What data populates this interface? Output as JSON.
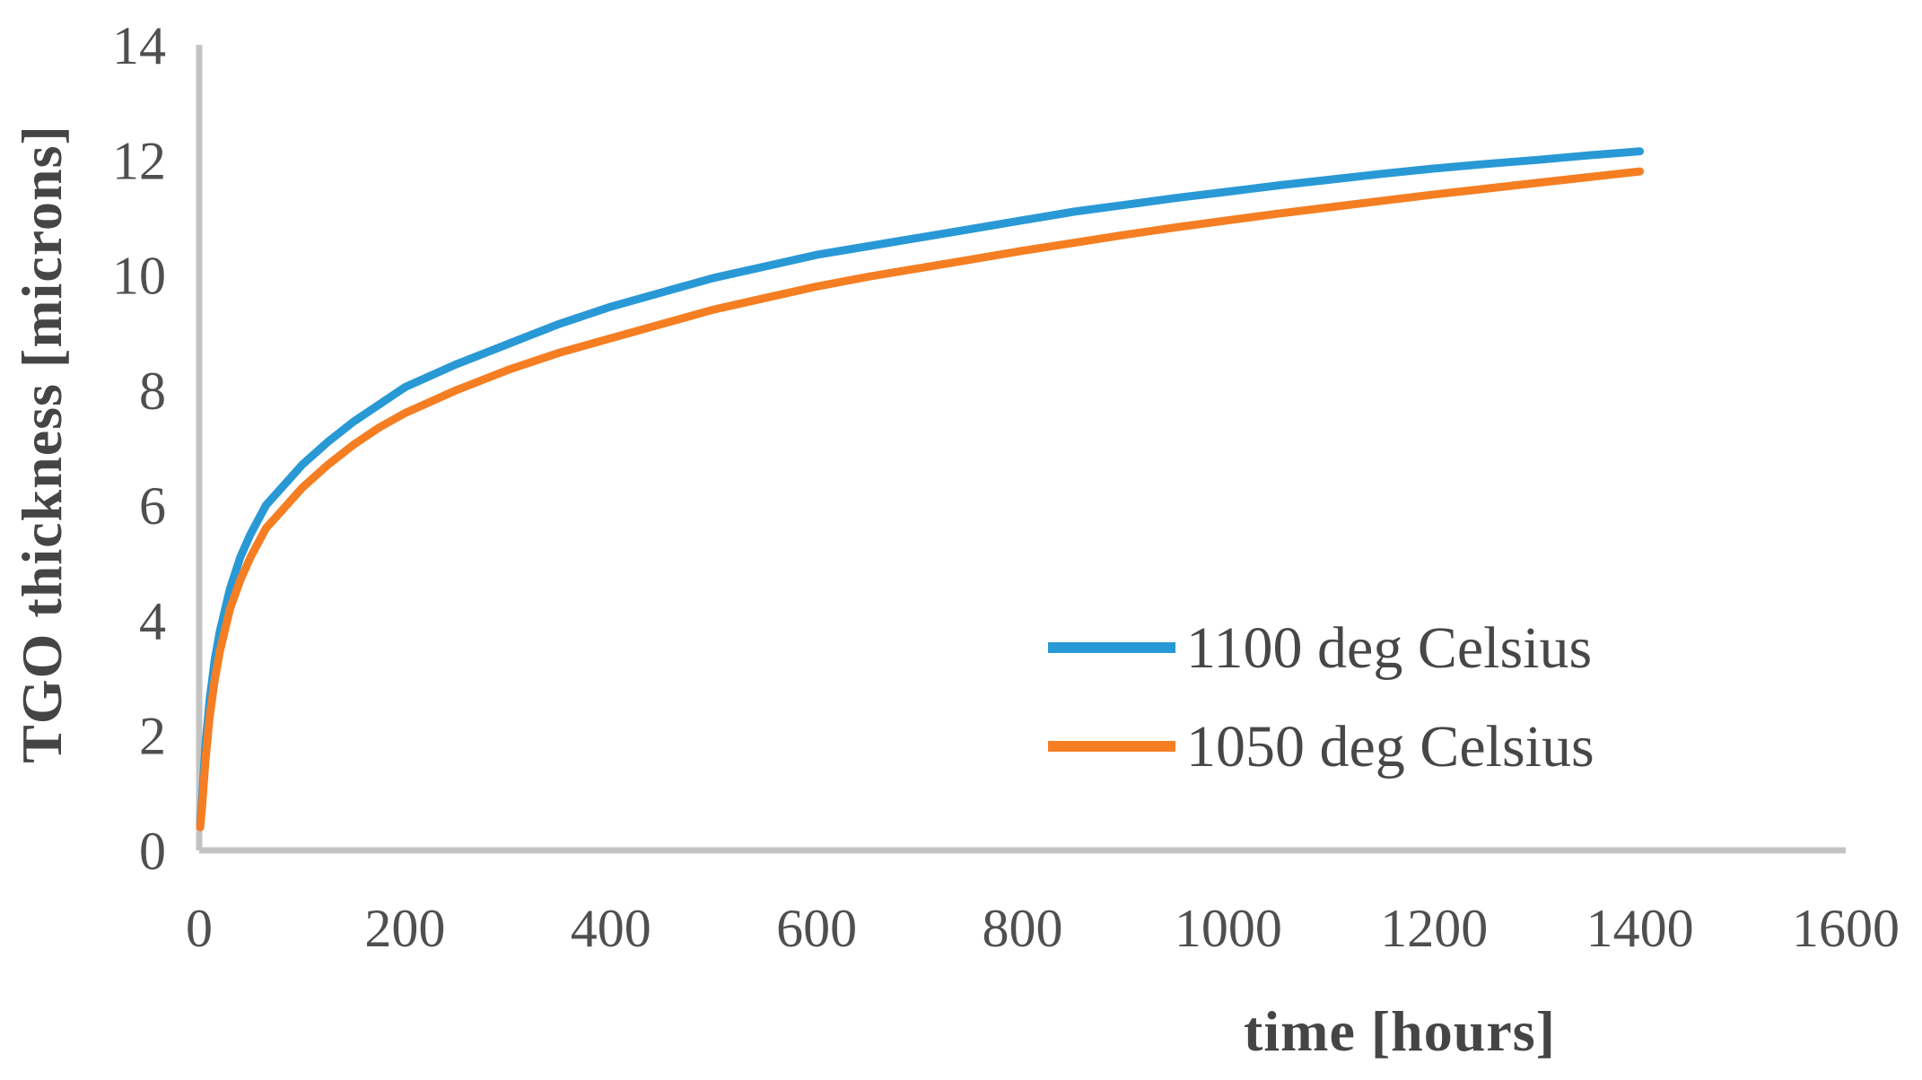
{
  "figure": {
    "background": "#ffffff"
  },
  "chart_data": {
    "type": "line",
    "title": "",
    "xlabel": "time [hours]",
    "ylabel": "TGO thickness [microns]",
    "xlim": [
      0,
      1600
    ],
    "ylim": [
      0,
      14
    ],
    "x_ticks": [
      0,
      200,
      400,
      600,
      800,
      1000,
      1200,
      1400,
      1600
    ],
    "y_ticks": [
      0,
      2,
      4,
      6,
      8,
      10,
      12,
      14
    ],
    "grid": false,
    "legend_position": "inside-right",
    "axis_color": "#c3c3c3",
    "tick_label_color": "#4f4f4f",
    "title_color": "#454545",
    "legend_text_color": "#474747",
    "series": [
      {
        "name": "1100 deg Celsius",
        "color": "#2999d6",
        "points": [
          [
            1,
            0.45
          ],
          [
            3,
            0.95
          ],
          [
            6,
            1.8
          ],
          [
            10,
            2.6
          ],
          [
            15,
            3.3
          ],
          [
            20,
            3.8
          ],
          [
            30,
            4.55
          ],
          [
            40,
            5.1
          ],
          [
            50,
            5.5
          ],
          [
            65,
            6.0
          ],
          [
            80,
            6.3
          ],
          [
            100,
            6.7
          ],
          [
            125,
            7.1
          ],
          [
            150,
            7.45
          ],
          [
            175,
            7.75
          ],
          [
            200,
            8.05
          ],
          [
            250,
            8.45
          ],
          [
            300,
            8.8
          ],
          [
            350,
            9.15
          ],
          [
            400,
            9.45
          ],
          [
            450,
            9.7
          ],
          [
            500,
            9.95
          ],
          [
            550,
            10.15
          ],
          [
            600,
            10.35
          ],
          [
            650,
            10.5
          ],
          [
            700,
            10.65
          ],
          [
            750,
            10.8
          ],
          [
            800,
            10.95
          ],
          [
            850,
            11.1
          ],
          [
            900,
            11.22
          ],
          [
            950,
            11.34
          ],
          [
            1000,
            11.45
          ],
          [
            1050,
            11.56
          ],
          [
            1100,
            11.66
          ],
          [
            1150,
            11.76
          ],
          [
            1200,
            11.85
          ],
          [
            1250,
            11.93
          ],
          [
            1300,
            12.0
          ],
          [
            1350,
            12.08
          ],
          [
            1400,
            12.15
          ]
        ]
      },
      {
        "name": "1050 deg Celsius",
        "color": "#f57e22",
        "points": [
          [
            1,
            0.4
          ],
          [
            3,
            0.8
          ],
          [
            6,
            1.55
          ],
          [
            10,
            2.3
          ],
          [
            15,
            2.95
          ],
          [
            20,
            3.45
          ],
          [
            30,
            4.2
          ],
          [
            40,
            4.7
          ],
          [
            50,
            5.1
          ],
          [
            65,
            5.6
          ],
          [
            80,
            5.9
          ],
          [
            100,
            6.3
          ],
          [
            125,
            6.7
          ],
          [
            150,
            7.05
          ],
          [
            175,
            7.35
          ],
          [
            200,
            7.6
          ],
          [
            250,
            8.0
          ],
          [
            300,
            8.35
          ],
          [
            350,
            8.65
          ],
          [
            400,
            8.9
          ],
          [
            450,
            9.15
          ],
          [
            500,
            9.4
          ],
          [
            550,
            9.6
          ],
          [
            600,
            9.8
          ],
          [
            650,
            9.97
          ],
          [
            700,
            10.12
          ],
          [
            750,
            10.27
          ],
          [
            800,
            10.42
          ],
          [
            850,
            10.56
          ],
          [
            900,
            10.7
          ],
          [
            950,
            10.83
          ],
          [
            1000,
            10.95
          ],
          [
            1050,
            11.07
          ],
          [
            1100,
            11.18
          ],
          [
            1150,
            11.29
          ],
          [
            1200,
            11.4
          ],
          [
            1250,
            11.5
          ],
          [
            1300,
            11.6
          ],
          [
            1350,
            11.7
          ],
          [
            1400,
            11.8
          ]
        ]
      }
    ]
  }
}
